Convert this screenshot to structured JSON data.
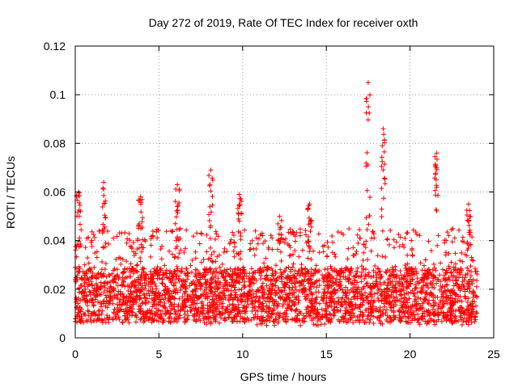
{
  "chart_data": {
    "type": "scatter",
    "title": "Day 272 of 2019, Rate Of TEC Index for receiver oxth",
    "xlabel": "GPS time / hours",
    "ylabel": "ROTI / TECUs",
    "xlim": [
      0,
      25
    ],
    "ylim": [
      0,
      0.12
    ],
    "xticks": [
      0,
      5,
      10,
      15,
      20,
      25
    ],
    "xtick_labels": [
      "0",
      "5",
      "10",
      "15",
      "20",
      "25"
    ],
    "yticks": [
      0,
      0.02,
      0.04,
      0.06,
      0.08,
      0.1,
      0.12
    ],
    "ytick_labels": [
      "0",
      "0.02",
      "0.04",
      "0.06",
      "0.08",
      "0.1",
      "0.12"
    ],
    "grid": true,
    "marker": "+",
    "color": "#ff0000",
    "series": [
      {
        "name": "ROTI",
        "baseline_range": [
          0.005,
          0.03
        ],
        "typical_max": 0.045,
        "spikes": [
          {
            "x": 0.2,
            "y": 0.06
          },
          {
            "x": 1.7,
            "y": 0.064
          },
          {
            "x": 3.9,
            "y": 0.058
          },
          {
            "x": 6.1,
            "y": 0.063
          },
          {
            "x": 8.1,
            "y": 0.069
          },
          {
            "x": 9.8,
            "y": 0.059
          },
          {
            "x": 12.2,
            "y": 0.05
          },
          {
            "x": 14.0,
            "y": 0.055
          },
          {
            "x": 17.5,
            "y": 0.105
          },
          {
            "x": 18.4,
            "y": 0.086
          },
          {
            "x": 21.6,
            "y": 0.076
          },
          {
            "x": 23.5,
            "y": 0.055
          }
        ],
        "x_range": [
          0,
          24
        ]
      }
    ]
  }
}
